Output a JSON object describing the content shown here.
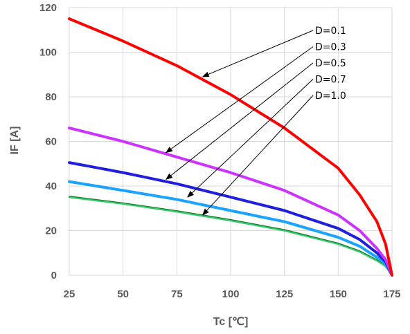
{
  "chart_data": {
    "type": "line",
    "xlabel": "Tc [℃]",
    "ylabel": "IF [A]",
    "xlim": [
      25,
      175
    ],
    "ylim": [
      0,
      120
    ],
    "xticks": [
      "25",
      "50",
      "75",
      "100",
      "125",
      "150",
      "175"
    ],
    "yticks": [
      "0",
      "20",
      "40",
      "60",
      "80",
      "100",
      "120"
    ],
    "grid": true,
    "series": [
      {
        "name": "D=0.1",
        "color": "#ff0000",
        "x": [
          25,
          50,
          75,
          100,
          125,
          150,
          160,
          168,
          172,
          175
        ],
        "y": [
          115,
          105,
          94,
          81,
          66,
          48,
          36,
          24,
          14,
          0
        ]
      },
      {
        "name": "D=0.3",
        "color": "#cc33ff",
        "x": [
          25,
          50,
          75,
          100,
          125,
          150,
          160,
          168,
          172,
          175
        ],
        "y": [
          66,
          60,
          53,
          46,
          38,
          27,
          20,
          12,
          7,
          0
        ]
      },
      {
        "name": "D=0.5",
        "color": "#1f1fdd",
        "x": [
          25,
          50,
          75,
          100,
          125,
          150,
          160,
          168,
          172,
          175
        ],
        "y": [
          50.5,
          46,
          41,
          35,
          29,
          21,
          16,
          10,
          6,
          0
        ]
      },
      {
        "name": "D=0.7",
        "color": "#1aa3ff",
        "x": [
          25,
          50,
          75,
          100,
          125,
          150,
          160,
          168,
          172,
          175
        ],
        "y": [
          42,
          38,
          34,
          29,
          24,
          17,
          13,
          8,
          5,
          0
        ]
      },
      {
        "name": "D=1.0",
        "color": "#33cc66",
        "x": [
          25,
          50,
          75,
          100,
          125,
          150,
          160,
          168,
          172,
          175
        ],
        "y": [
          35,
          32,
          28.5,
          24.5,
          20,
          14,
          10.5,
          6.5,
          4,
          0
        ]
      }
    ],
    "annotations": [
      {
        "text": "D=0.1",
        "target": [
          87,
          89
        ]
      },
      {
        "text": "D=0.3",
        "target": [
          70,
          55
        ]
      },
      {
        "text": "D=0.5",
        "target": [
          70,
          43
        ]
      },
      {
        "text": "D=0.7",
        "target": [
          80,
          35
        ]
      },
      {
        "text": "D=1.0",
        "target": [
          87,
          27
        ]
      }
    ]
  }
}
